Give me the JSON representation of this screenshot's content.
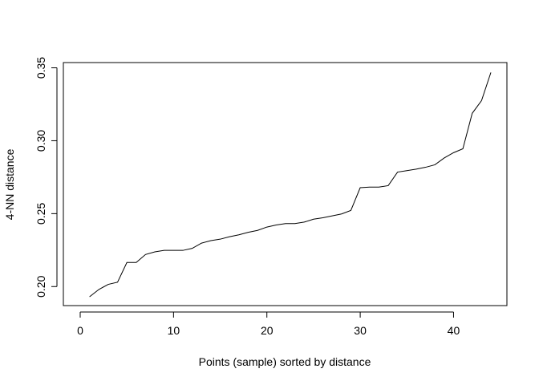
{
  "chart_data": {
    "type": "line",
    "title": "",
    "xlabel": "Points (sample) sorted by distance",
    "ylabel": "4-NN distance",
    "xlim": [
      0,
      44
    ],
    "ylim": [
      0.193,
      0.347
    ],
    "xticks": [
      0,
      10,
      20,
      30,
      40
    ],
    "yticks": [
      0.2,
      0.25,
      0.3,
      0.35
    ],
    "xtick_labels": [
      "0",
      "10",
      "20",
      "30",
      "40"
    ],
    "ytick_labels": [
      "0.20",
      "0.25",
      "0.30",
      "0.35"
    ],
    "grid": false,
    "line_color": "#000000",
    "series": [
      {
        "x": [
          1,
          2,
          3,
          4,
          5,
          6,
          7,
          8,
          9,
          10,
          11,
          12,
          13,
          14,
          15,
          16,
          17,
          18,
          19,
          20,
          21,
          22,
          23,
          24,
          25,
          26,
          27,
          28,
          29,
          30,
          31,
          32,
          33,
          34,
          35,
          36,
          37,
          38,
          39,
          40,
          41,
          42,
          43,
          44
        ],
        "values": [
          0.193,
          0.198,
          0.2015,
          0.203,
          0.2165,
          0.2165,
          0.222,
          0.2238,
          0.2248,
          0.2248,
          0.2248,
          0.2262,
          0.2298,
          0.2315,
          0.2325,
          0.2342,
          0.2355,
          0.2372,
          0.2385,
          0.2408,
          0.2422,
          0.2432,
          0.2432,
          0.2442,
          0.2462,
          0.2472,
          0.2485,
          0.2498,
          0.2522,
          0.2678,
          0.2682,
          0.2682,
          0.2692,
          0.2785,
          0.2795,
          0.2805,
          0.2818,
          0.2835,
          0.2882,
          0.2918,
          0.2945,
          0.3188,
          0.3275,
          0.3468
        ]
      }
    ]
  }
}
